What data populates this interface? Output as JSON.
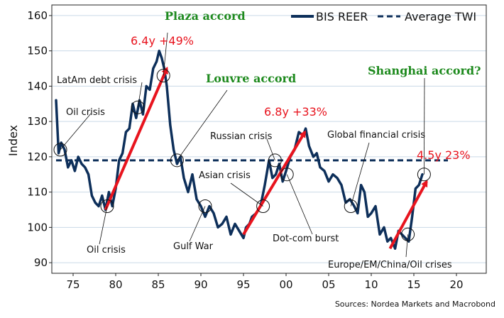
{
  "chart_data": {
    "type": "line",
    "xlabel": "",
    "ylabel": "Index",
    "xlim": [
      1972.5,
      2023.5
    ],
    "ylim": [
      87,
      163
    ],
    "x_ticks": [
      1975,
      1980,
      1985,
      1990,
      1995,
      2000,
      2005,
      2010,
      2015,
      2020
    ],
    "x_tick_labels": [
      "75",
      "80",
      "85",
      "90",
      "95",
      "00",
      "05",
      "10",
      "15",
      "20"
    ],
    "y_ticks": [
      90,
      100,
      110,
      120,
      130,
      140,
      150,
      160
    ],
    "y_tick_labels": [
      "90",
      "100",
      "110",
      "120",
      "130",
      "140",
      "150",
      "160"
    ],
    "grid": true,
    "legend_position": "top-right",
    "colors": {
      "series": "#0d2f5a",
      "arrow": "#e8141e",
      "accord": "#1e8a1e"
    },
    "series": [
      {
        "name": "BIS REER",
        "style": "solid",
        "x": [
          1973.0,
          1973.3,
          1973.6,
          1974.0,
          1974.4,
          1974.8,
          1975.2,
          1975.6,
          1976.0,
          1976.4,
          1976.8,
          1977.2,
          1977.6,
          1978.0,
          1978.4,
          1978.8,
          1979.2,
          1979.6,
          1980.0,
          1980.4,
          1980.8,
          1981.2,
          1981.6,
          1982.0,
          1982.4,
          1982.8,
          1983.2,
          1983.6,
          1984.0,
          1984.4,
          1984.8,
          1985.1,
          1985.4,
          1985.7,
          1986.0,
          1986.4,
          1986.8,
          1987.2,
          1987.6,
          1988.0,
          1988.5,
          1989.0,
          1989.5,
          1990.0,
          1990.5,
          1991.0,
          1991.5,
          1992.0,
          1992.5,
          1993.0,
          1993.5,
          1994.0,
          1994.5,
          1995.0,
          1995.3,
          1995.7,
          1996.0,
          1996.5,
          1997.0,
          1997.5,
          1998.0,
          1998.4,
          1998.8,
          1999.2,
          1999.6,
          2000.0,
          2000.5,
          2001.0,
          2001.5,
          2002.0,
          2002.3,
          2002.7,
          2003.2,
          2003.6,
          2004.0,
          2004.5,
          2005.0,
          2005.5,
          2006.0,
          2006.5,
          2007.0,
          2007.5,
          2008.0,
          2008.4,
          2008.8,
          2009.2,
          2009.6,
          2010.0,
          2010.5,
          2011.0,
          2011.5,
          2011.9,
          2012.3,
          2012.8,
          2013.2,
          2013.6,
          2014.0,
          2014.4,
          2014.8,
          2015.2,
          2015.6,
          2016.0
        ],
        "y": [
          136,
          121,
          124,
          122,
          117,
          119,
          116,
          120,
          118,
          117,
          115,
          109,
          107,
          106,
          109,
          105,
          110,
          106,
          111,
          119,
          121,
          127,
          128,
          135,
          131,
          136,
          132,
          140,
          139,
          145,
          147,
          150,
          148,
          145,
          140,
          129,
          122,
          118,
          120,
          114,
          110,
          115,
          108,
          106,
          103,
          106,
          104,
          100,
          101,
          103,
          98,
          101,
          99,
          97,
          100,
          101,
          103,
          104,
          106,
          112,
          119,
          114,
          115,
          118,
          113,
          116,
          120,
          122,
          127,
          126,
          128,
          123,
          120,
          121,
          117,
          116,
          113,
          115,
          114,
          112,
          107,
          108,
          106,
          104,
          112,
          110,
          103,
          104,
          106,
          98,
          100,
          96,
          97,
          94,
          99,
          98,
          97,
          96,
          103,
          111,
          112,
          115
        ]
      },
      {
        "name": "Average TWI",
        "style": "dashed",
        "x": [
          1973,
          2019
        ],
        "y": [
          119,
          119
        ]
      }
    ],
    "arrows": [
      {
        "from": [
          1978.8,
          105
        ],
        "to": [
          1986.0,
          145
        ],
        "label": "6.4y +49%"
      },
      {
        "from": [
          1995.0,
          98
        ],
        "to": [
          2002.2,
          127
        ],
        "label": "6.8y +33%"
      },
      {
        "from": [
          2012.2,
          94
        ],
        "to": [
          2016.5,
          113
        ],
        "label": "4.5y 23%"
      }
    ],
    "annotations": [
      {
        "text": "Plaza accord",
        "kind": "accord"
      },
      {
        "text": "Louvre accord",
        "kind": "accord"
      },
      {
        "text": "Shanghai accord?",
        "kind": "accord"
      },
      {
        "text": "LatAm debt crisis",
        "kind": "event",
        "at": [
          1982.6,
          134
        ]
      },
      {
        "text": "Oil crisis",
        "kind": "event",
        "at": [
          1973.5,
          122
        ]
      },
      {
        "text": "Oil crisis",
        "kind": "event",
        "at": [
          1979.0,
          106
        ]
      },
      {
        "text": "Gulf War",
        "kind": "event",
        "at": [
          1990.5,
          106
        ]
      },
      {
        "text": "Russian crisis",
        "kind": "event",
        "at": [
          1998.7,
          119
        ]
      },
      {
        "text": "Asian crisis",
        "kind": "event",
        "at": [
          1997.3,
          106
        ]
      },
      {
        "text": "Dot-com burst",
        "kind": "event",
        "at": [
          2000.1,
          115
        ]
      },
      {
        "text": "Global financial crisis",
        "kind": "event",
        "at": [
          2007.6,
          106
        ]
      },
      {
        "text": "Europe/EM/China/Oil crises",
        "kind": "event",
        "at": [
          2014.3,
          98
        ]
      },
      {
        "text": "",
        "kind": "event-circle",
        "at": [
          1985.6,
          143
        ]
      },
      {
        "text": "",
        "kind": "event-circle",
        "at": [
          1987.2,
          119
        ]
      },
      {
        "text": "",
        "kind": "event-circle",
        "at": [
          2016.2,
          115
        ]
      }
    ],
    "source": "Sources: Nordea Markets and Macrobond"
  }
}
